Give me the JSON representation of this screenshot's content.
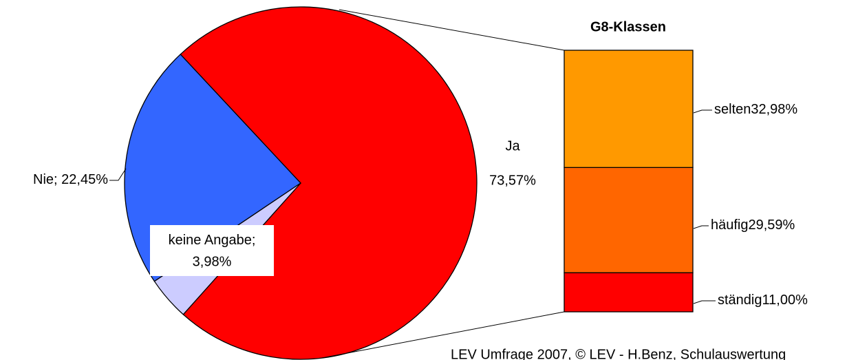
{
  "chart_data": [
    {
      "type": "pie",
      "categories": [
        "Ja",
        "Nie",
        "keine Angabe"
      ],
      "values": [
        73.57,
        22.45,
        3.98
      ],
      "value_labels": [
        "73,57%",
        "22,45%",
        "3,98%"
      ],
      "label_separator": "; ",
      "colors": [
        "#ff0000",
        "#3366ff",
        "#ccccff"
      ]
    },
    {
      "type": "stacked-bar",
      "title": "G8-Klassen",
      "categories": [
        "selten",
        "häufig",
        "ständig"
      ],
      "values": [
        32.98,
        29.59,
        11.0
      ],
      "value_labels": [
        "32,98%",
        "29,59%",
        "11,00%"
      ],
      "colors": [
        "#ff9900",
        "#ff6600",
        "#ff0000"
      ]
    }
  ],
  "footer": "LEV Umfrage 2007, © LEV - H.Benz, Schulauswertung"
}
